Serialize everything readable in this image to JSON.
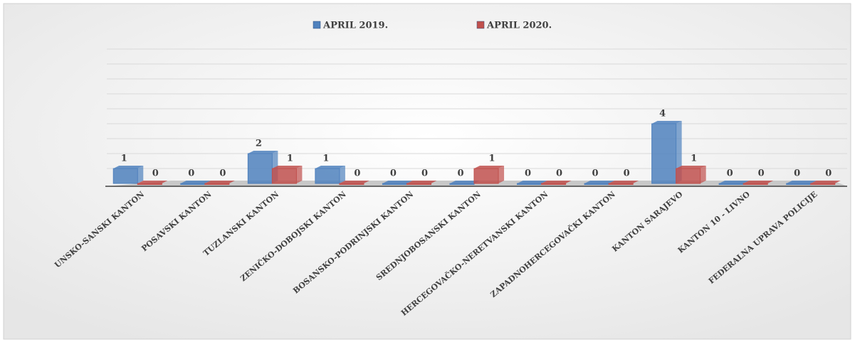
{
  "chart_data": {
    "type": "bar",
    "categories": [
      "UNSKO-SANSKI KANTON",
      "POSAVSKI KANTON",
      "TUZLANSKI KANTON",
      "ZENIČKO-DOBOJSKI KANTON",
      "BOSANSKO-PODRINJSKI KANTON",
      "SREDNJOBOSANSKI KANTON",
      "HERCEGOVAČKO-NERETVANSKI KANTON",
      "ZAPADNOHERCEGOVAČKI KANTON",
      "KANTON SARAJEVO",
      "KANTON 10 - LIVNO",
      "FEDERALNA UPRAVA POLICIJE"
    ],
    "series": [
      {
        "name": "APRIL 2019.",
        "color": "#4f81bd",
        "values": [
          1,
          0,
          2,
          1,
          0,
          0,
          0,
          0,
          4,
          0,
          0
        ]
      },
      {
        "name": "APRIL 2020.",
        "color": "#c0504d",
        "values": [
          0,
          0,
          1,
          0,
          0,
          1,
          0,
          0,
          1,
          0,
          0
        ]
      }
    ],
    "ylim": [
      0,
      9
    ],
    "yticks": [
      0,
      1,
      2,
      3,
      4,
      5,
      6,
      7,
      8,
      9
    ],
    "grid": true,
    "legend": "top"
  }
}
